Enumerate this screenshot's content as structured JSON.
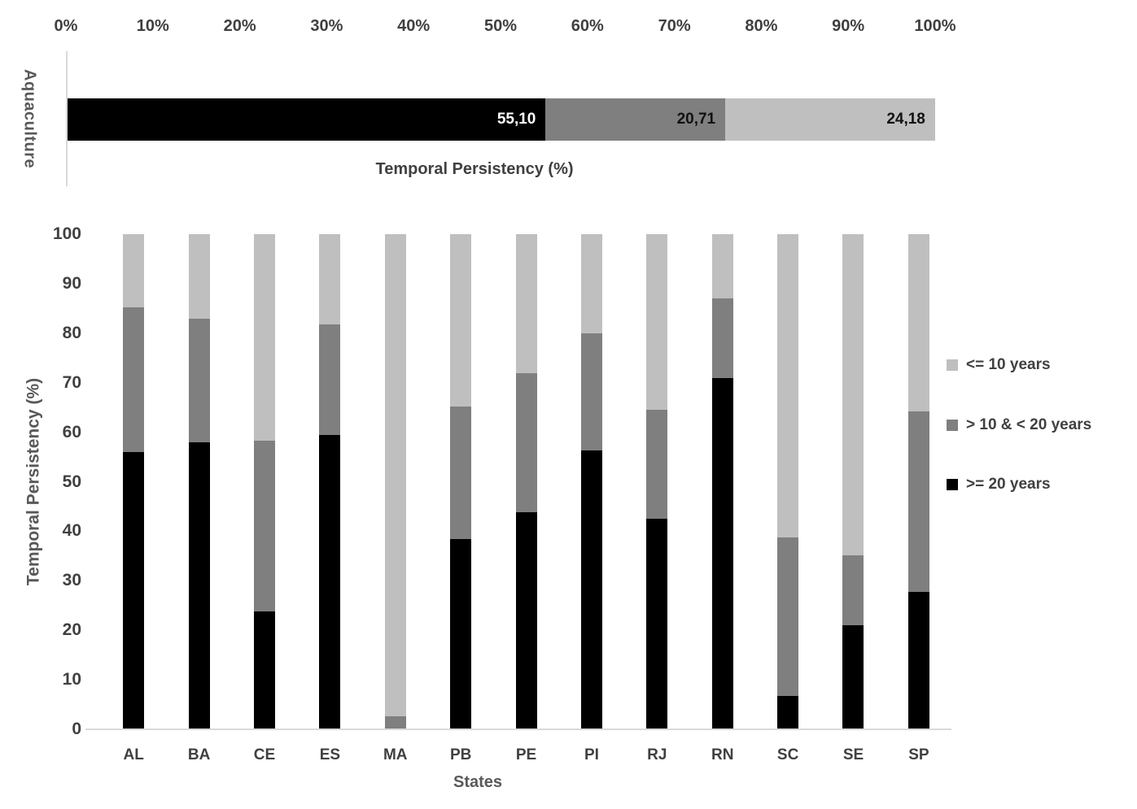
{
  "top_chart": {
    "axis_label": "Aquaculture",
    "x_title": "Temporal Persistency (%)",
    "ticks": [
      "0%",
      "10%",
      "20%",
      "30%",
      "40%",
      "50%",
      "60%",
      "70%",
      "80%",
      "90%",
      "100%"
    ]
  },
  "bottom_chart": {
    "y_title": "Temporal Persistency (%)",
    "x_title": "States",
    "y_ticks": [
      0,
      10,
      20,
      30,
      40,
      50,
      60,
      70,
      80,
      90,
      100
    ]
  },
  "legend": {
    "items": [
      {
        "label": "<= 10 years",
        "color": "#bfbfbf"
      },
      {
        "label": "> 10 & < 20 years",
        "color": "#7f7f7f"
      },
      {
        "label": ">= 20 years",
        "color": "#000000"
      }
    ]
  },
  "colors": {
    "black_series": "#000000",
    "dark_gray_series": "#7f7f7f",
    "light_gray_series": "#bfbfbf",
    "axis_line": "#d9d9d9",
    "tick_text": "#404040",
    "title_text": "#595959"
  },
  "chart_data": [
    {
      "type": "bar",
      "subtype": "stacked-horizontal",
      "categories": [
        "Aquaculture"
      ],
      "series": [
        {
          "name": ">= 20 years",
          "values": [
            55.1
          ],
          "color": "#000000",
          "label": "55,10",
          "label_color": "#ffffff"
        },
        {
          "name": "> 10 & < 20 years",
          "values": [
            20.71
          ],
          "color": "#7f7f7f",
          "label": "20,71",
          "label_color": "#111111"
        },
        {
          "name": "<= 10 years",
          "values": [
            24.18
          ],
          "color": "#bfbfbf",
          "label": "24,18",
          "label_color": "#111111"
        }
      ],
      "xlabel": "Temporal Persistency (%)",
      "ylabel": "Aquaculture",
      "xlim": [
        0,
        100
      ],
      "x_tick_labels": [
        "0%",
        "10%",
        "20%",
        "30%",
        "40%",
        "50%",
        "60%",
        "70%",
        "80%",
        "90%",
        "100%"
      ],
      "grid": false,
      "data_labels_visible": true
    },
    {
      "type": "bar",
      "subtype": "stacked-vertical",
      "categories": [
        "AL",
        "BA",
        "CE",
        "ES",
        "MA",
        "PB",
        "PE",
        "PI",
        "RJ",
        "RN",
        "SC",
        "SE",
        "SP"
      ],
      "series": [
        {
          "name": ">= 20 years",
          "color": "#000000",
          "values": [
            56.0,
            58.0,
            23.8,
            59.4,
            0.0,
            38.4,
            43.9,
            56.4,
            42.5,
            71.0,
            6.8,
            21.0,
            27.7
          ]
        },
        {
          "name": "> 10 & < 20 years",
          "color": "#7f7f7f",
          "values": [
            29.2,
            25.0,
            34.5,
            22.4,
            2.6,
            26.8,
            28.0,
            23.6,
            22.0,
            16.1,
            31.9,
            14.2,
            36.5
          ]
        },
        {
          "name": "<= 10 years",
          "color": "#bfbfbf",
          "values": [
            14.8,
            17.0,
            41.7,
            18.2,
            97.4,
            34.8,
            28.1,
            20.0,
            35.5,
            12.9,
            61.3,
            64.8,
            35.8
          ]
        }
      ],
      "xlabel": "States",
      "ylabel": "Temporal Persistency (%)",
      "ylim": [
        0,
        100
      ],
      "y_ticks": [
        0,
        10,
        20,
        30,
        40,
        50,
        60,
        70,
        80,
        90,
        100
      ],
      "grid": false,
      "legend_position": "right",
      "legend_order": [
        "<= 10 years",
        "> 10 & < 20 years",
        ">= 20 years"
      ]
    }
  ]
}
